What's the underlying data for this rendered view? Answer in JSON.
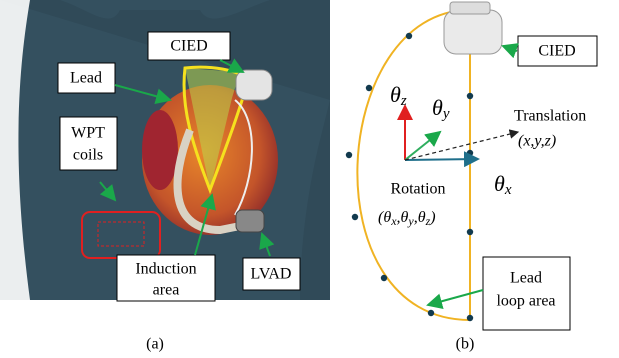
{
  "panel_a": {
    "caption": "(a)",
    "cied": "CIED",
    "lead": "Lead",
    "wpt_coils": [
      "WPT",
      "coils"
    ],
    "induction_area": [
      "Induction",
      "area"
    ],
    "lvad": "LVAD"
  },
  "panel_b": {
    "caption": "(b)",
    "cied": "CIED",
    "theta_z": {
      "symbol": "θ",
      "sub": "z"
    },
    "theta_y": {
      "symbol": "θ",
      "sub": "y"
    },
    "theta_x": {
      "symbol": "θ",
      "sub": "x"
    },
    "translation": "Translation",
    "translation_params": "(x,y,z)",
    "rotation": "Rotation",
    "rotation_params": [
      {
        "text": "(θ",
        "sub": "x"
      },
      {
        "text": ",θ",
        "sub": "y"
      },
      {
        "text": ",θ",
        "sub": "z"
      },
      {
        "text": ")"
      }
    ],
    "lead_loop_area": [
      "Lead",
      "loop area"
    ]
  }
}
